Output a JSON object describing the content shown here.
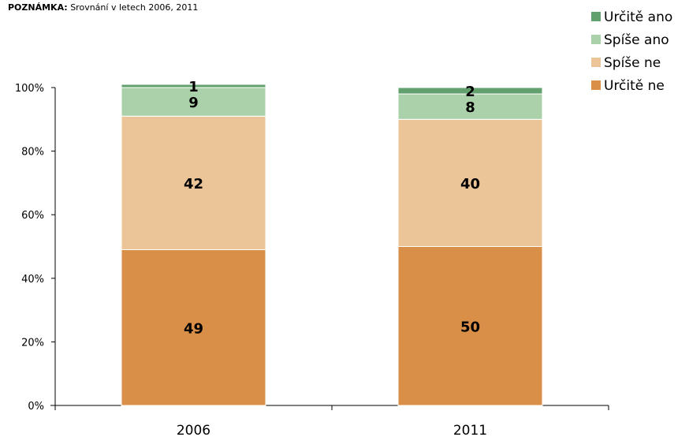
{
  "note": {
    "label": "POZNÁMKA:",
    "text": "Srovnání v letech 2006, 2011"
  },
  "chart_data": {
    "type": "bar",
    "stacked": true,
    "categories": [
      "2006",
      "2011"
    ],
    "series": [
      {
        "name": "Určitě ne",
        "values": [
          49,
          50
        ],
        "color": "#d98f48"
      },
      {
        "name": "Spíše ne",
        "values": [
          42,
          40
        ],
        "color": "#ebc497"
      },
      {
        "name": "Spíše ano",
        "values": [
          9,
          8
        ],
        "color": "#abd1aa"
      },
      {
        "name": "Určitě ano",
        "values": [
          1,
          2
        ],
        "color": "#62a06e"
      }
    ],
    "data_labels": [
      [
        "49",
        "50"
      ],
      [
        "42",
        "40"
      ],
      [
        "9",
        "8"
      ],
      [
        "1",
        "2"
      ]
    ],
    "yticks": [
      "0%",
      "20%",
      "40%",
      "60%",
      "80%",
      "100%"
    ],
    "ylim": [
      0,
      100
    ],
    "grid": false,
    "legend_position": "top-right",
    "legend_order": [
      "Určitě ano",
      "Spíše ano",
      "Spíše ne",
      "Určitě ne"
    ]
  }
}
